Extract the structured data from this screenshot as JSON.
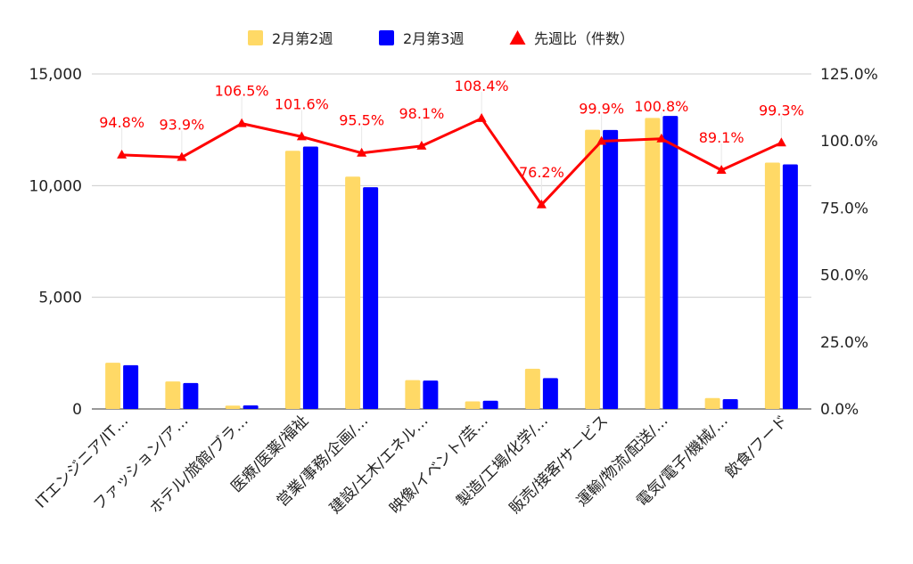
{
  "chart_data": {
    "type": "bar",
    "categories": [
      "ITエンジニア/IT…",
      "ファッション/ア…",
      "ホテル/旅館/ブラ…",
      "医療/医薬/福祉",
      "営業/事務/企画/…",
      "建設/土木/エネル…",
      "映像/イベント/芸…",
      "製造/工場/化学/…",
      "販売/接客/サービス",
      "運輸/物流/配送/…",
      "電気/電子/機械/…",
      "飲食/フード"
    ],
    "series": [
      {
        "name": "2月第2週",
        "axis": "left",
        "color": "#FFD966",
        "values": [
          2070,
          1230,
          150,
          11560,
          10400,
          1290,
          340,
          1800,
          12500,
          13030,
          490,
          11030
        ]
      },
      {
        "name": "2月第3週",
        "axis": "left",
        "color": "#0000FF",
        "values": [
          1960,
          1160,
          160,
          11750,
          9930,
          1270,
          370,
          1380,
          12490,
          13120,
          440,
          10950
        ]
      },
      {
        "name": "先週比（件数）",
        "type": "line",
        "axis": "right",
        "color": "#FF0000",
        "marker": "triangle",
        "values": [
          94.8,
          93.9,
          106.5,
          101.6,
          95.5,
          98.1,
          108.4,
          76.2,
          99.9,
          100.8,
          89.1,
          99.3
        ],
        "labels": [
          "94.8%",
          "93.9%",
          "106.5%",
          "101.6%",
          "95.5%",
          "98.1%",
          "108.4%",
          "76.2%",
          "99.9%",
          "100.8%",
          "89.1%",
          "99.3%"
        ]
      }
    ],
    "y_left": {
      "min": 0,
      "max": 15000,
      "ticks": [
        0,
        5000,
        10000,
        15000
      ],
      "tick_labels": [
        "0",
        "5,000",
        "10,000",
        "15,000"
      ]
    },
    "y_right": {
      "min": 0,
      "max": 125,
      "ticks": [
        0,
        25,
        50,
        75,
        100,
        125
      ],
      "tick_labels": [
        "0.0%",
        "25.0%",
        "50.0%",
        "75.0%",
        "100.0%",
        "125.0%"
      ]
    },
    "legend_position": "top",
    "grid": true,
    "title": "",
    "xlabel": "",
    "ylabel": ""
  }
}
